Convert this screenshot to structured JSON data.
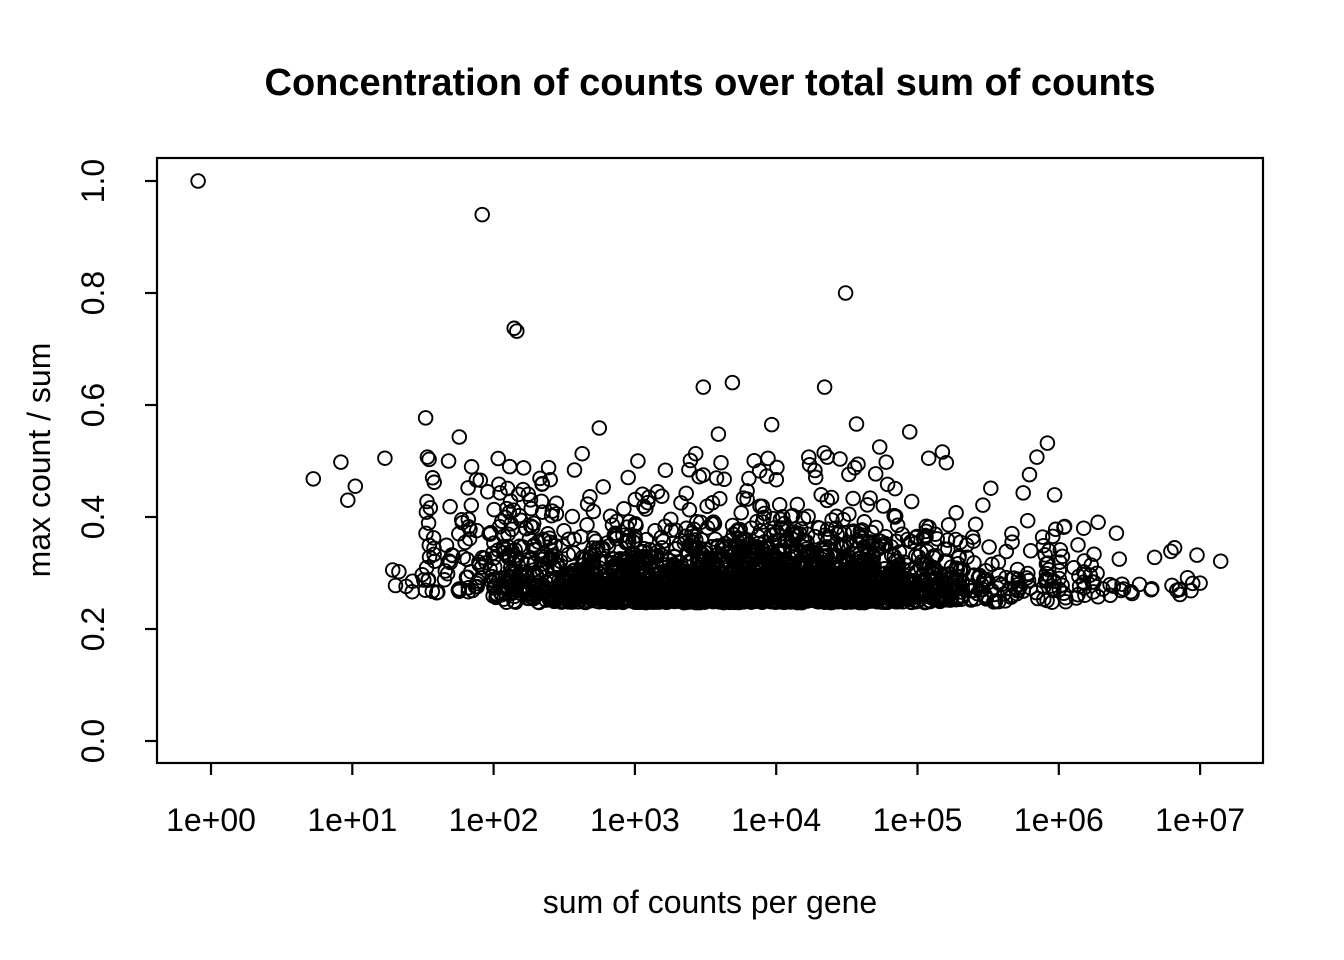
{
  "chart_data": {
    "type": "scatter",
    "title": "Concentration of counts over total sum of counts",
    "xlabel": "sum of counts per gene",
    "ylabel": "max count / sum",
    "x_scale": "log10",
    "x_tick_labels": [
      "1e+00",
      "1e+01",
      "1e+02",
      "1e+03",
      "1e+04",
      "1e+05",
      "1e+06",
      "1e+07"
    ],
    "x_tick_log10_values": [
      0,
      1,
      2,
      3,
      4,
      5,
      6,
      7
    ],
    "y_tick_labels": [
      "0.0",
      "0.2",
      "0.4",
      "0.6",
      "0.8",
      "1.0"
    ],
    "y_tick_values": [
      0,
      0.2,
      0.4,
      0.6,
      0.8,
      1.0
    ],
    "xlim_log10": [
      -0.38,
      7.45
    ],
    "ylim": [
      -0.04,
      1.04
    ],
    "grid": false,
    "legend": null,
    "marker": {
      "shape": "open-circle",
      "radius_px": 6.8,
      "stroke_px": 1.9,
      "color": "#000000"
    },
    "colors": {
      "background": "#ffffff",
      "foreground": "#000000"
    },
    "notable_points": [
      [
        0.81,
        1.0
      ],
      [
        83,
        0.94
      ],
      [
        140,
        0.737
      ],
      [
        146,
        0.732
      ],
      [
        31000,
        0.8
      ],
      [
        3050,
        0.632
      ],
      [
        4900,
        0.64
      ],
      [
        22000,
        0.632
      ],
      [
        33,
        0.577
      ],
      [
        560,
        0.559
      ],
      [
        9300,
        0.565
      ],
      [
        37000,
        0.566
      ],
      [
        88000,
        0.552
      ],
      [
        3900,
        0.548
      ],
      [
        1050,
        0.5
      ],
      [
        5.3,
        0.468
      ],
      [
        8.3,
        0.498
      ],
      [
        10.5,
        0.455
      ],
      [
        9.3,
        0.43
      ],
      [
        17,
        0.505
      ],
      [
        34,
        0.507
      ],
      [
        48,
        0.5
      ],
      [
        130,
        0.49
      ],
      [
        37,
        0.47
      ],
      [
        38,
        0.462
      ],
      [
        66,
        0.452
      ],
      [
        91,
        0.445
      ],
      [
        111,
        0.443
      ],
      [
        480,
        0.436
      ],
      [
        17000,
        0.507
      ],
      [
        23000,
        0.507
      ],
      [
        54000,
        0.525
      ],
      [
        60000,
        0.498
      ],
      [
        120000,
        0.505
      ],
      [
        150000,
        0.516
      ],
      [
        160000,
        0.497
      ],
      [
        830000,
        0.532
      ],
      [
        700000,
        0.507
      ],
      [
        560000,
        0.443
      ],
      [
        1500000,
        0.38
      ],
      [
        1100000,
        0.383
      ],
      [
        950000,
        0.378
      ],
      [
        6600000,
        0.345
      ],
      [
        9500000,
        0.332
      ],
      [
        10000000,
        0.282
      ],
      [
        14000000,
        0.321
      ],
      [
        4500000,
        0.27
      ],
      [
        2800000,
        0.28
      ]
    ],
    "dense_cloud": {
      "description": "Several thousand genes form a dense horizontal band: max/sum mostly 0.25-0.42 with a sharp lower edge near 0.25, spanning log10(sum) roughly 1.5 to 6.3 and thinning toward both ends; sparse vertical stacks of points appear at low sums.",
      "n_points_approx": 2600,
      "seed": 9,
      "groups": [
        {
          "name": "main-band",
          "n": 2400,
          "lx_mean": 3.78,
          "lx_sd": 0.98,
          "lx_min": 1.5,
          "lx_max": 6.28,
          "y_base": 0.247,
          "y_scale": 0.047,
          "y_max": 0.52,
          "widen_below": 2.4,
          "widen_factor": 1.5,
          "raise_below": 2.0,
          "raise_by": 0.012
        },
        {
          "name": "left-sparse",
          "n": 95,
          "lx_min": 1.2,
          "lx_max": 2.45,
          "lx_pow": 0.55,
          "y_base": 0.262,
          "y_scale": 0.07,
          "y_max": 0.55
        },
        {
          "name": "right-sparse",
          "n": 55,
          "lx_min": 5.9,
          "lx_max": 6.95,
          "lx_pow": 1.7,
          "y_base": 0.26,
          "y_scale": 0.042,
          "y_max": 0.46
        }
      ],
      "stacks": [
        {
          "x": 34,
          "y_values": [
            0.27,
            0.29,
            0.31,
            0.33,
            0.35,
            0.37,
            0.39,
            0.41,
            0.43
          ]
        },
        {
          "x": 130,
          "y_values": [
            0.29,
            0.31,
            0.33,
            0.35,
            0.37,
            0.39,
            0.41,
            0.43,
            0.45
          ]
        }
      ]
    }
  }
}
